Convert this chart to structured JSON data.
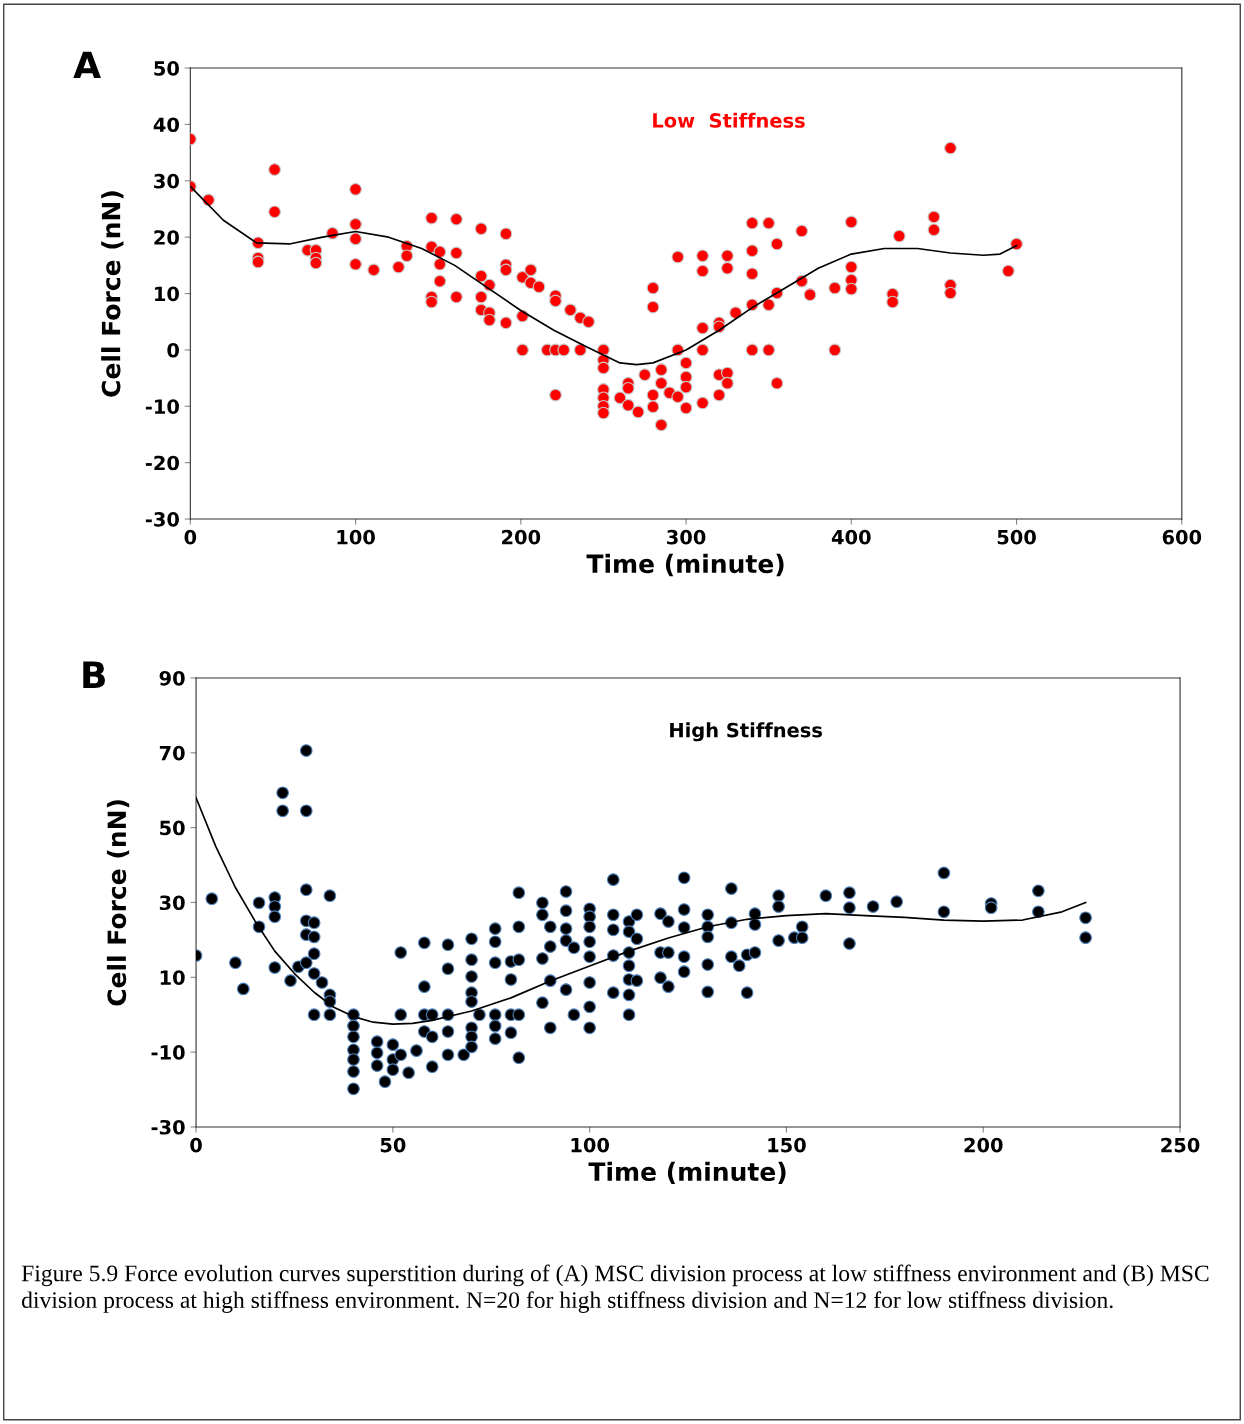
{
  "chart_data": [
    {
      "type": "scatter",
      "title": "A",
      "xlabel": "Time (minute)",
      "ylabel": "Cell Force (nN)",
      "xlim": [
        0,
        600
      ],
      "xticks": [
        0,
        100,
        200,
        300,
        400,
        500,
        600
      ],
      "ylim": [
        -30,
        50
      ],
      "yticks": [
        -30,
        -20,
        -10,
        0,
        10,
        20,
        30,
        40,
        50
      ],
      "grid": false,
      "marker": "circle",
      "series": [
        {
          "name": "Low  Stiffness",
          "color": "#ff0000",
          "x": [
            0,
            0,
            11,
            41,
            41,
            41,
            51,
            51,
            71,
            76,
            76,
            76,
            86,
            100,
            100,
            100,
            100,
            111,
            126,
            131,
            131,
            146,
            146,
            146,
            146,
            151,
            151,
            151,
            161,
            161,
            161,
            176,
            176,
            176,
            176,
            181,
            181,
            181,
            191,
            191,
            191,
            191,
            201,
            201,
            201,
            206,
            206,
            211,
            221,
            221,
            216,
            221,
            226,
            221,
            230,
            236,
            241,
            236,
            250,
            250,
            250,
            250,
            250,
            250,
            250,
            260,
            265,
            265,
            265,
            271,
            275,
            280,
            280,
            280,
            280,
            285,
            285,
            285,
            290,
            295,
            295,
            295,
            300,
            300,
            300,
            300,
            310,
            310,
            310,
            310,
            310,
            320,
            320,
            320,
            320,
            325,
            325,
            325,
            325,
            330,
            340,
            340,
            340,
            340,
            340,
            350,
            350,
            350,
            355,
            355,
            355,
            370,
            370,
            375,
            390,
            390,
            400,
            400,
            400,
            400,
            425,
            425,
            429,
            450,
            450,
            460,
            460,
            460,
            495,
            500
          ],
          "values": [
            37.4,
            29,
            26.6,
            19,
            16.3,
            15.6,
            32,
            24.5,
            17.7,
            17.7,
            16.3,
            15.4,
            20.7,
            28.5,
            22.3,
            19.7,
            15.2,
            14.2,
            14.7,
            18.4,
            16.7,
            23.4,
            18.3,
            9.4,
            8.5,
            17.4,
            15.2,
            12.2,
            23.2,
            17.2,
            9.4,
            21.5,
            13.1,
            9.4,
            7.1,
            11.5,
            6.6,
            5.3,
            20.6,
            15.1,
            14.2,
            4.8,
            12.9,
            6,
            0,
            14.2,
            11.9,
            11.2,
            9.6,
            8.7,
            0,
            0,
            0,
            -8,
            7.1,
            5.7,
            5,
            0,
            0,
            -1.8,
            -3.2,
            -7,
            -8.5,
            -10,
            -11.2,
            -8.5,
            -5.9,
            -6.8,
            -9.8,
            -11,
            -4.4,
            11,
            7.6,
            -8,
            -10.1,
            -3.5,
            -5.9,
            -13.3,
            -7.6,
            16.5,
            0,
            -8.3,
            -2.3,
            -4.8,
            -6.6,
            -10.3,
            16.7,
            14,
            3.9,
            0,
            -9.4,
            4.8,
            4.1,
            -4.4,
            -8,
            16.7,
            14.5,
            -4.1,
            -5.9,
            6.6,
            22.5,
            17.6,
            13.5,
            8,
            0,
            22.5,
            8,
            0,
            18.8,
            10.1,
            -5.9,
            21.1,
            12.2,
            9.8,
            11,
            0,
            22.7,
            14.7,
            12.4,
            10.8,
            9.9,
            8.5,
            20.2,
            23.6,
            21.3,
            35.8,
            11.5,
            10.1,
            14,
            18.8
          ]
        },
        {
          "type": "line",
          "color": "#000000",
          "marker": "none",
          "line_style": "solid",
          "x": [
            0,
            20,
            40,
            60,
            80,
            100,
            120,
            140,
            160,
            180,
            200,
            220,
            240,
            260,
            270,
            280,
            300,
            320,
            340,
            360,
            380,
            400,
            420,
            440,
            460,
            480,
            490,
            500
          ],
          "values": [
            29,
            23,
            19,
            18.8,
            20,
            21,
            20,
            18,
            15,
            11,
            7,
            3.5,
            0.5,
            -2.3,
            -2.6,
            -2.3,
            0,
            3.5,
            7.5,
            11,
            14.5,
            17,
            18,
            18,
            17.2,
            16.8,
            17,
            18.5
          ]
        }
      ]
    },
    {
      "type": "scatter",
      "title": "B",
      "xlabel": "Time (minute)",
      "ylabel": "Cell Force (nN)",
      "xlim": [
        0,
        250
      ],
      "xticks": [
        0,
        50,
        100,
        150,
        200,
        250
      ],
      "ylim": [
        -30,
        90
      ],
      "yticks": [
        -30,
        -10,
        10,
        30,
        50,
        70,
        90
      ],
      "grid": false,
      "marker": "circle",
      "annotations": [
        "Figure 5.9 Force evolution curves superstition during of (A) MSC division process at low stiffness environment and (B) MSC division process at high stiffness environment. N=20 for high stiffness division and N=12 for low stiffness division."
      ],
      "series": [
        {
          "name": "High Stiffness",
          "color": "#000000",
          "x": [
            0,
            4,
            10,
            12,
            16,
            16,
            20,
            20,
            20,
            20,
            22,
            22,
            24,
            26,
            28,
            28,
            28,
            28,
            28,
            28,
            30,
            30,
            30,
            30,
            30,
            32,
            34,
            34,
            34,
            34,
            40,
            40,
            40,
            40,
            40,
            40,
            40,
            46,
            46,
            46,
            48,
            50,
            50,
            50,
            52,
            52,
            52,
            54,
            56,
            58,
            58,
            58,
            58,
            60,
            60,
            60,
            64,
            64,
            64,
            64,
            64,
            68,
            70,
            70,
            70,
            70,
            70,
            70,
            70,
            70,
            72,
            76,
            76,
            76,
            76,
            76,
            76,
            80,
            80,
            80,
            80,
            82,
            82,
            82,
            82,
            82,
            88,
            88,
            88,
            88,
            90,
            90,
            90,
            90,
            94,
            94,
            94,
            94,
            94,
            96,
            96,
            100,
            100,
            100,
            100,
            100,
            100,
            100,
            100,
            106,
            106,
            106,
            106,
            106,
            110,
            110,
            110,
            110,
            110,
            110,
            110,
            112,
            112,
            112,
            118,
            118,
            118,
            120,
            120,
            120,
            124,
            124,
            124,
            124,
            124,
            130,
            130,
            130,
            130,
            130,
            136,
            136,
            136,
            138,
            140,
            140,
            142,
            142,
            142,
            148,
            148,
            148,
            152,
            154,
            154,
            160,
            166,
            166,
            166,
            172,
            178,
            190,
            190,
            202,
            202,
            214,
            214,
            226,
            226
          ],
          "values": [
            15.8,
            31,
            13.9,
            6.9,
            29.9,
            23.5,
            31.3,
            28.9,
            26.2,
            12.6,
            59.3,
            54.5,
            9.1,
            12.8,
            70.6,
            54.5,
            33.4,
            25.1,
            21.4,
            13.9,
            24.6,
            20.8,
            16.3,
            11,
            0,
            8.6,
            31.8,
            5.3,
            3.5,
            0,
            0,
            -3,
            -5.9,
            -9.4,
            -12,
            -15.2,
            -19.8,
            -7.2,
            -10.2,
            -13.6,
            -17.9,
            -8,
            -12,
            -14.7,
            16.6,
            0,
            -10.7,
            -15.5,
            -9.6,
            19.2,
            7.5,
            0,
            -4.5,
            0,
            -5.9,
            -13.9,
            18.7,
            12.3,
            0,
            -4.5,
            -10.7,
            -10.7,
            20.3,
            14.7,
            10.2,
            5.9,
            3.5,
            -3.5,
            -5.9,
            -8.6,
            0,
            23,
            19.5,
            13.9,
            0,
            -3,
            -6.4,
            14.2,
            9.4,
            0,
            -4.8,
            32.6,
            23.5,
            14.7,
            0,
            -11.5,
            29.9,
            26.7,
            15,
            3.2,
            23.5,
            18.2,
            9.1,
            -3.5,
            32.9,
            27.8,
            23,
            19.8,
            6.7,
            17.9,
            0,
            28.3,
            26.2,
            23.5,
            19.5,
            15.5,
            8.6,
            2.1,
            -3.5,
            36.1,
            26.7,
            22.7,
            15.8,
            5.9,
            24.9,
            22.2,
            16.6,
            13.1,
            9.4,
            5.3,
            0,
            26.7,
            20.3,
            9.1,
            27,
            16.6,
            9.9,
            24.9,
            16.6,
            7.5,
            36.6,
            28.1,
            23.3,
            15.5,
            11.5,
            26.7,
            23.5,
            20.8,
            13.4,
            6.1,
            33.7,
            24.6,
            15.5,
            13.1,
            16,
            5.9,
            27,
            24.1,
            16.6,
            31.8,
            28.9,
            19.8,
            20.6,
            23.5,
            20.6,
            31.8,
            32.6,
            28.6,
            19,
            28.9,
            30.2,
            37.9,
            27.5,
            29.7,
            28.6,
            33.1,
            27.5,
            25.9,
            20.6
          ]
        },
        {
          "type": "line",
          "color": "#000000",
          "marker": "none",
          "line_style": "solid",
          "x": [
            0,
            5,
            10,
            15,
            20,
            25,
            30,
            35,
            40,
            45,
            50,
            55,
            60,
            70,
            80,
            90,
            100,
            110,
            120,
            130,
            140,
            150,
            160,
            170,
            180,
            190,
            200,
            210,
            220,
            226
          ],
          "values": [
            58,
            45,
            34,
            25,
            17,
            11,
            6,
            2,
            -0.5,
            -2,
            -2.5,
            -2.3,
            -1.5,
            1,
            4.5,
            9,
            13,
            17,
            20.5,
            23.5,
            25.5,
            26.5,
            27,
            26.5,
            26,
            25.3,
            25,
            25.3,
            27.5,
            30
          ]
        }
      ]
    }
  ]
}
